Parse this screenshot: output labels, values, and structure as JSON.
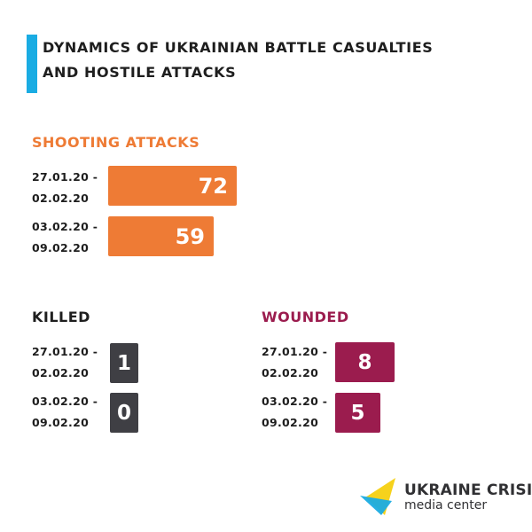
{
  "title": "DYNAMICS OF UKRAINIAN BATTLE CASUALTIES AND HOSTILE ATTACKS",
  "colors": {
    "accent_bar": "#1aace3",
    "shooting": "#ee7b35",
    "killed": "#3f3f44",
    "wounded": "#9b1c4e",
    "logo_yellow": "#f6d21c",
    "logo_blue": "#1aace3"
  },
  "chart_data": [
    {
      "type": "bar",
      "title": "SHOOTING ATTACKS",
      "categories": [
        [
          "27.01.20 -",
          "02.02.20"
        ],
        [
          "03.02.20 -",
          "09.02.20"
        ]
      ],
      "values": [
        72,
        59
      ],
      "orientation": "horizontal"
    },
    {
      "type": "bar",
      "title": "KILLED",
      "categories": [
        [
          "27.01.20 -",
          "02.02.20"
        ],
        [
          "03.02.20 -",
          "09.02.20"
        ]
      ],
      "values": [
        1,
        0
      ]
    },
    {
      "type": "bar",
      "title": "WOUNDED",
      "categories": [
        [
          "27.01.20 -",
          "02.02.20"
        ],
        [
          "03.02.20 -",
          "09.02.20"
        ]
      ],
      "values": [
        8,
        5
      ]
    }
  ],
  "logo": {
    "line1": "UKRAINE CRISIS",
    "line2": "media center"
  }
}
